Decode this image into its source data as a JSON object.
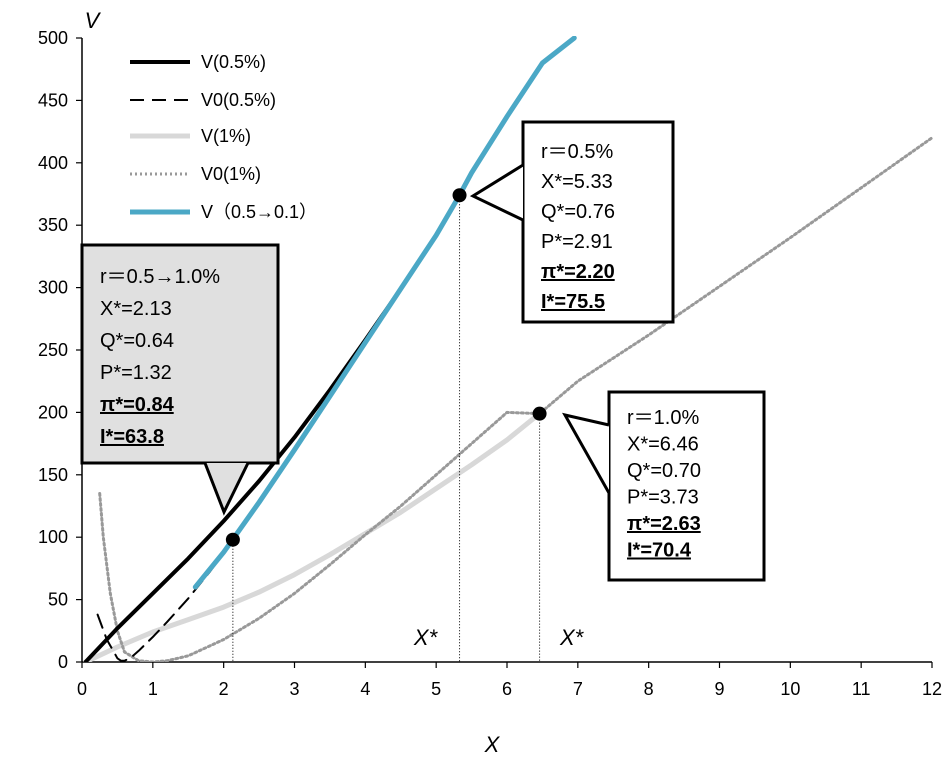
{
  "chart_data": {
    "type": "line",
    "xlabel": "X",
    "ylabel": "V",
    "xlim": [
      0,
      12
    ],
    "ylim": [
      0,
      500
    ],
    "x_ticks": [
      "0",
      "1",
      "2",
      "3",
      "4",
      "5",
      "6",
      "7",
      "8",
      "9",
      "10",
      "11",
      "12"
    ],
    "y_ticks": [
      "0",
      "50",
      "100",
      "150",
      "200",
      "250",
      "300",
      "350",
      "400",
      "450",
      "500"
    ],
    "legend_position": "top-left",
    "series": [
      {
        "name": "V(0.5%)",
        "color": "#000000",
        "style": "solid",
        "x": [
          0.05,
          0.5,
          1,
          1.5,
          2,
          2.5,
          3,
          3.5,
          4,
          4.5,
          5,
          5.33
        ],
        "y": [
          0,
          27,
          55,
          83,
          113,
          145,
          180,
          218,
          258,
          299,
          342,
          374
        ]
      },
      {
        "name": "V0(0.5%)",
        "color": "#000000",
        "style": "dashed",
        "x": [
          0.22,
          0.35,
          0.45,
          0.5,
          0.55,
          0.6,
          0.7,
          0.8,
          1,
          1.2,
          1.5,
          1.8,
          2.1
        ],
        "y": [
          38,
          18,
          8,
          3,
          1,
          1,
          4,
          9,
          20,
          32,
          51,
          72,
          95
        ]
      },
      {
        "name": "V(1%)",
        "color": "#d8d8d8",
        "style": "solid",
        "x": [
          0.05,
          0.5,
          1,
          1.5,
          2,
          2.5,
          3,
          3.5,
          4,
          4.5,
          5,
          5.5,
          6,
          6.46
        ],
        "y": [
          0,
          12,
          24,
          34,
          44,
          56,
          70,
          86,
          103,
          120,
          139,
          158,
          178,
          199
        ]
      },
      {
        "name": "V0(1%)",
        "color": "#999999",
        "style": "dotted",
        "x": [
          0.25,
          0.3,
          0.4,
          0.5,
          0.6,
          0.8,
          1,
          1.2,
          1.5,
          2,
          2.5,
          3,
          3.5,
          4,
          4.5,
          5,
          5.5,
          6,
          6.46,
          7,
          8,
          9,
          10,
          11,
          12
        ],
        "y": [
          135,
          100,
          55,
          25,
          8,
          1,
          0,
          1,
          5,
          18,
          35,
          55,
          78,
          102,
          125,
          150,
          175,
          200,
          199,
          225,
          262,
          301,
          340,
          380,
          420
        ]
      },
      {
        "name": "V（0.5→0.1）",
        "color": "#4ba8c6",
        "style": "solid",
        "x": [
          1.6,
          2,
          2.5,
          3,
          3.5,
          4,
          4.5,
          5,
          5.33,
          5.5,
          6,
          6.5,
          6.95
        ],
        "y": [
          60,
          88,
          128,
          170,
          213,
          256,
          299,
          342,
          374,
          392,
          437,
          480,
          500
        ]
      }
    ],
    "points": [
      {
        "label": "r=0.5→1.0%",
        "x": 2.13,
        "y": 98
      },
      {
        "label": "r=0.5%",
        "x": 5.33,
        "y": 374
      },
      {
        "label": "r=1.0%",
        "x": 6.46,
        "y": 199
      }
    ],
    "annotations": [
      {
        "text": "X*",
        "x": 5.33
      },
      {
        "text": "X*",
        "x": 6.46
      }
    ],
    "callouts": [
      {
        "lines": [
          "r＝0.5→1.0%",
          "X*=2.13",
          "Q*=0.64",
          "P*=1.32"
        ],
        "bold": [
          "π*=0.84",
          "I*=63.8"
        ],
        "fill": "#e0e0e0"
      },
      {
        "lines": [
          "r＝0.5%",
          "X*=5.33",
          "Q*=0.76",
          "P*=2.91"
        ],
        "bold": [
          "π*=2.20",
          "I*=75.5"
        ],
        "fill": "#ffffff"
      },
      {
        "lines": [
          "r＝1.0%",
          "X*=6.46",
          "Q*=0.70",
          "P*=3.73"
        ],
        "bold": [
          "π*=2.63",
          "I*=70.4"
        ],
        "fill": "#ffffff"
      }
    ]
  }
}
